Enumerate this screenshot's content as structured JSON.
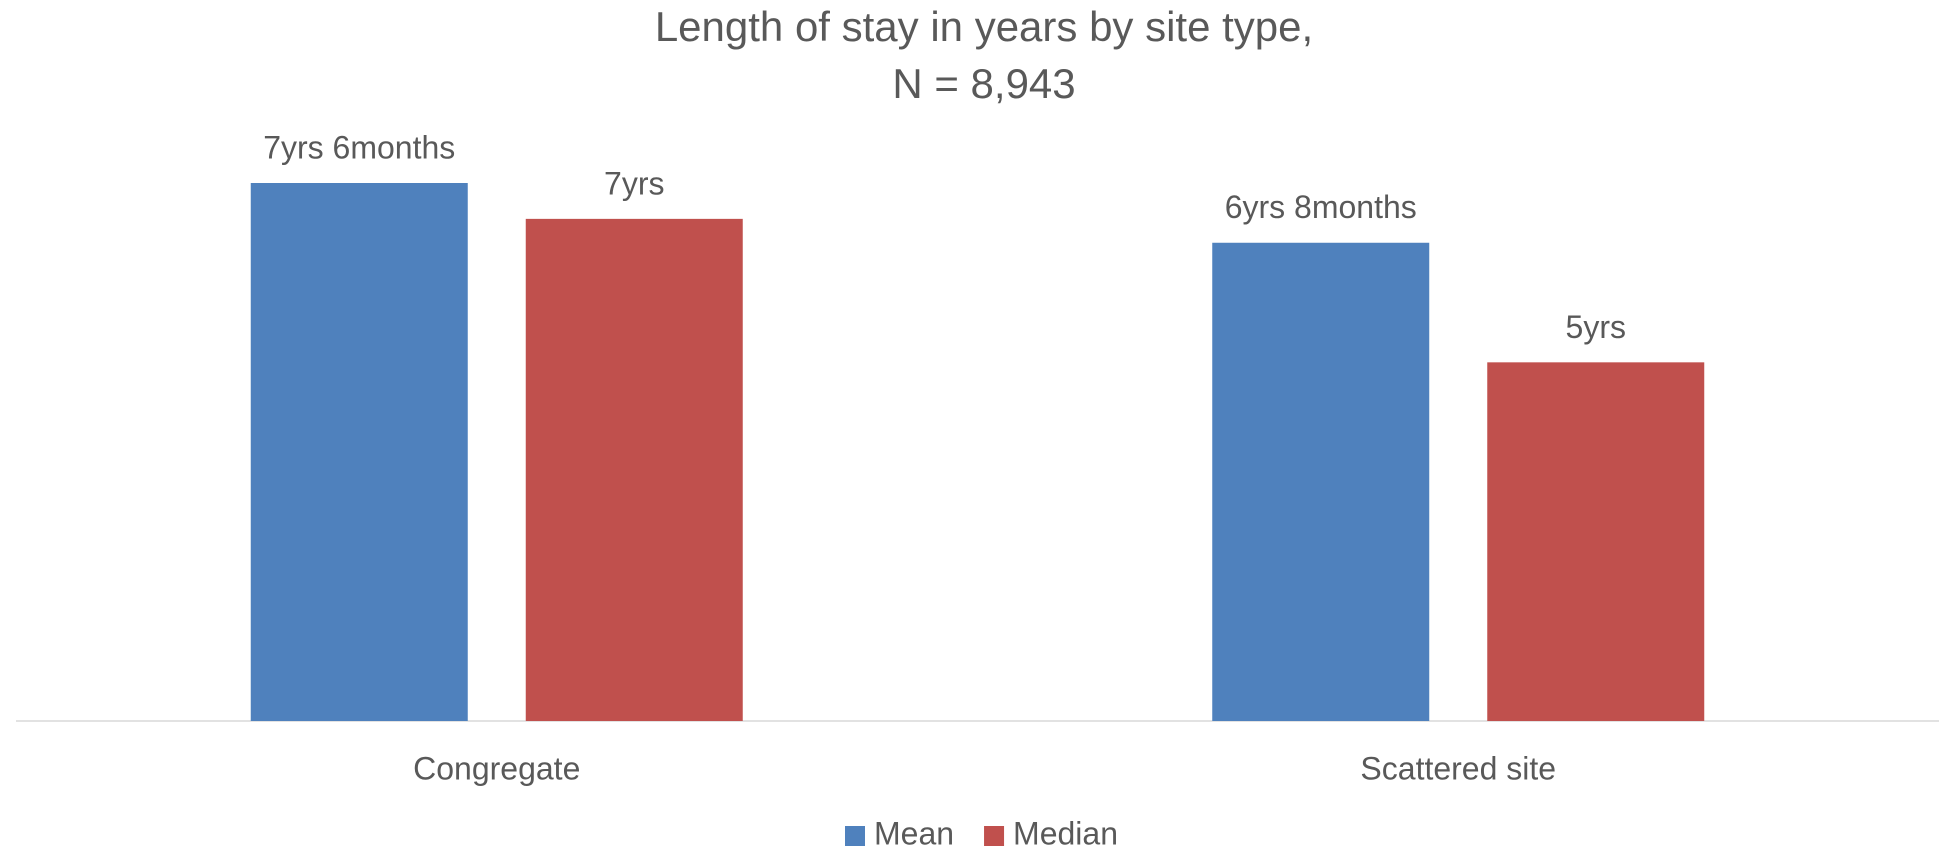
{
  "chart_data": {
    "type": "bar",
    "title": [
      "Length of stay in years by site type,",
      "N = 8,943"
    ],
    "categories": [
      "Congregate",
      "Scattered site"
    ],
    "series": [
      {
        "name": "Mean",
        "color": "#4f81bd",
        "values": [
          7.5,
          6.667
        ],
        "value_labels": [
          "7yrs 6months",
          "6yrs 8months"
        ]
      },
      {
        "name": "Median",
        "color": "#c0504d",
        "values": [
          7,
          5
        ],
        "value_labels": [
          "7yrs",
          "5yrs"
        ]
      }
    ],
    "ylim": [
      0,
      7.5
    ],
    "legend": "bottom"
  }
}
